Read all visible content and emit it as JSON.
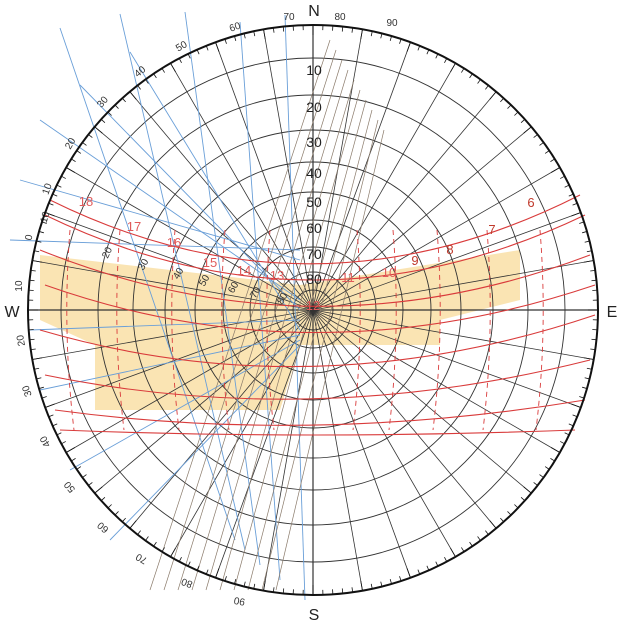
{
  "cardinals": {
    "north": "N",
    "south": "S",
    "east": "E",
    "west": "W"
  },
  "altitude_labels": [
    "10",
    "20",
    "30",
    "40",
    "50",
    "60",
    "70",
    "80"
  ],
  "hour_labels": [
    {
      "text": "6",
      "color": "#c0392b"
    },
    {
      "text": "7",
      "color": "#c0392b"
    },
    {
      "text": "8",
      "color": "#c0392b"
    },
    {
      "text": "9",
      "color": "#c0392b"
    },
    {
      "text": "10",
      "color": "#e05a5a"
    },
    {
      "text": "11",
      "color": "#e05a5a"
    },
    {
      "text": "12",
      "color": "#e05a5a"
    },
    {
      "text": "13",
      "color": "#e05a5a"
    },
    {
      "text": "14",
      "color": "#e05a5a"
    },
    {
      "text": "15",
      "color": "#e05a5a"
    },
    {
      "text": "16",
      "color": "#e05a5a"
    },
    {
      "text": "17",
      "color": "#e05a5a"
    },
    {
      "text": "18",
      "color": "#e05a5a"
    }
  ],
  "top_rim_labels": [
    "70",
    "80",
    "90"
  ],
  "left_rim_labels": [
    "60",
    "50",
    "40",
    "30",
    "20",
    "10",
    "0",
    "10",
    "20",
    "30",
    "40",
    "50",
    "60",
    "70",
    "80",
    "90"
  ],
  "inner_west_labels": [
    "10",
    "20",
    "30",
    "40",
    "50",
    "60",
    "70",
    "80"
  ],
  "colors": {
    "grid": "#333333",
    "blue_lines": "#6a9fd8",
    "sun_paths": "#d93b3b",
    "shading": "#f9dfa6",
    "border": "#111111"
  }
}
